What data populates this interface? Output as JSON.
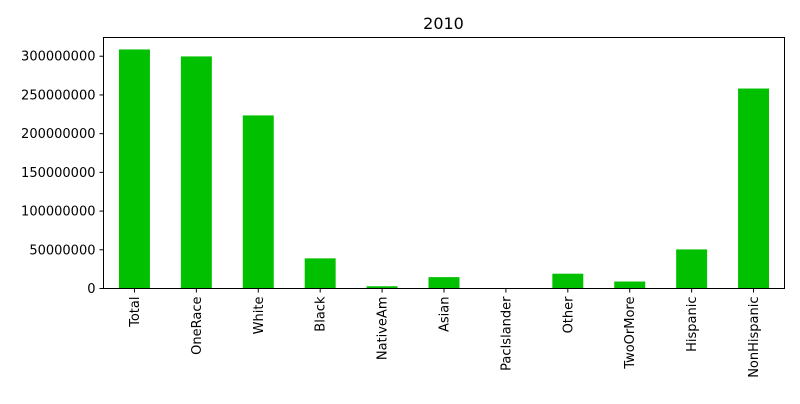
{
  "chart_data": {
    "type": "bar",
    "title": "2010",
    "xlabel": "",
    "ylabel": "",
    "categories": [
      "Total",
      "OneRace",
      "White",
      "Black",
      "NativeAm",
      "Asian",
      "PacIslander",
      "Other",
      "TwoOrMore",
      "Hispanic",
      "NonHispanic"
    ],
    "values": [
      308745538,
      299736465,
      223553265,
      38929319,
      2932248,
      14674252,
      540013,
      19107368,
      9009073,
      50477594,
      258267944
    ],
    "yticks": [
      0,
      50000000,
      100000000,
      150000000,
      200000000,
      250000000,
      300000000
    ],
    "ytick_labels": [
      "0",
      "50000000",
      "100000000",
      "150000000",
      "200000000",
      "250000000",
      "300000000"
    ],
    "ylim": [
      0,
      324182815
    ],
    "bar_color": "#00c000",
    "grid": false,
    "legend": false
  }
}
